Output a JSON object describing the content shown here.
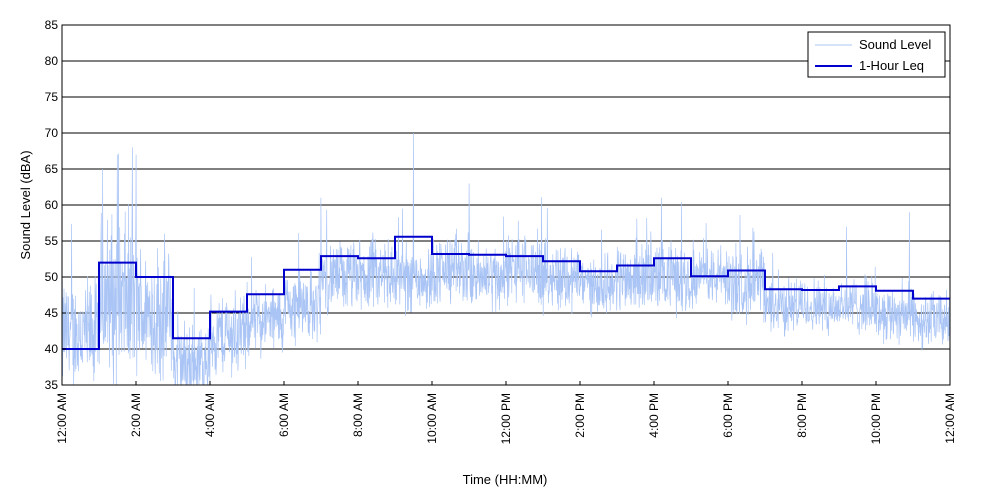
{
  "chart_data": {
    "type": "line",
    "xlabel": "Time (HH:MM)",
    "ylabel": "Sound Level (dBA)",
    "xlim": [
      0,
      24
    ],
    "ylim": [
      35,
      85
    ],
    "x_unit": "hours since 12:00 AM",
    "yticks": [
      35,
      40,
      45,
      50,
      55,
      60,
      65,
      70,
      75,
      80,
      85
    ],
    "xticks": [
      0,
      2,
      4,
      6,
      8,
      10,
      12,
      14,
      16,
      18,
      20,
      22,
      24
    ],
    "xtick_labels": [
      "12:00 AM",
      "2:00 AM",
      "4:00 AM",
      "6:00 AM",
      "8:00 AM",
      "10:00 AM",
      "12:00 PM",
      "2:00 PM",
      "4:00 PM",
      "6:00 PM",
      "8:00 PM",
      "10:00 PM",
      "12:00 AM"
    ],
    "grid": "horizontal",
    "legend_position": "top-right",
    "series": [
      {
        "name": "Sound Level",
        "color": "#a9c4f5",
        "style": "thin-noisy",
        "hourly_mean": [
          42,
          47,
          45,
          38,
          42,
          44,
          46,
          50,
          50,
          50,
          51,
          50,
          51,
          50,
          49,
          50,
          50,
          50,
          49,
          46,
          46,
          46,
          45,
          44
        ],
        "hourly_spread": [
          8,
          12,
          10,
          6,
          6,
          5,
          5,
          5,
          5,
          5,
          5,
          5,
          5,
          5,
          4,
          5,
          5,
          4,
          5,
          4,
          4,
          4,
          4,
          4
        ],
        "peaks": [
          {
            "x": 1.1,
            "y": 65
          },
          {
            "x": 1.9,
            "y": 68
          },
          {
            "x": 2.0,
            "y": 67
          },
          {
            "x": 9.5,
            "y": 70
          },
          {
            "x": 11.0,
            "y": 63
          },
          {
            "x": 16.2,
            "y": 61
          },
          {
            "x": 7.0,
            "y": 61
          },
          {
            "x": 21.2,
            "y": 57
          },
          {
            "x": 22.9,
            "y": 59
          }
        ]
      },
      {
        "name": "1-Hour Leq",
        "color": "#0000cc",
        "style": "step",
        "x": [
          0,
          1,
          2,
          3,
          4,
          5,
          6,
          7,
          8,
          9,
          10,
          11,
          12,
          13,
          14,
          15,
          16,
          17,
          18,
          19,
          20,
          21,
          22,
          23
        ],
        "values": [
          40,
          52,
          50,
          41.5,
          45.2,
          47.6,
          51,
          52.9,
          52.6,
          55.6,
          53.2,
          53.1,
          52.9,
          52.2,
          50.8,
          51.6,
          52.6,
          50.1,
          50.9,
          48.3,
          48.2,
          48.7,
          48.1,
          47.0
        ]
      }
    ]
  }
}
